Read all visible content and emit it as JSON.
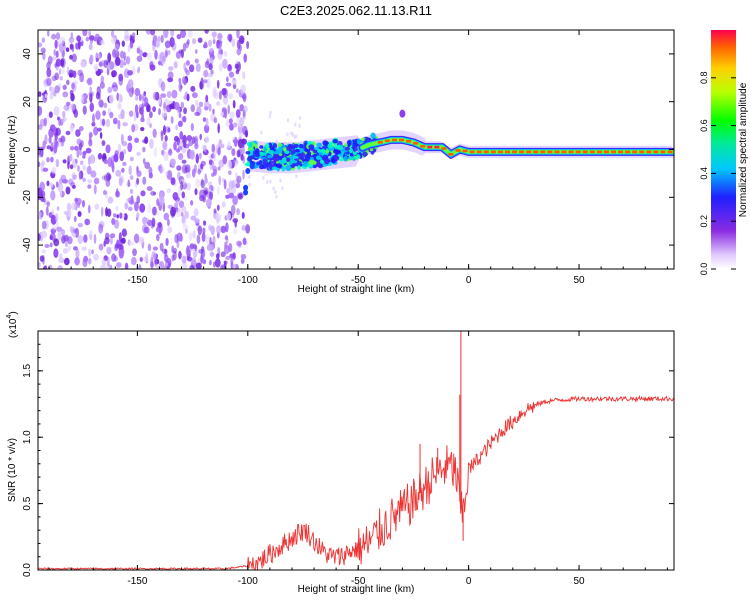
{
  "title": "C2E3.2025.062.11.13.R11",
  "colors": {
    "snr_line": "#ee3333",
    "axis": "#000000",
    "background": "#ffffff"
  },
  "chart_data": [
    {
      "type": "heatmap",
      "name": "spectrogram",
      "title": "C2E3.2025.062.11.13.R11",
      "xlabel": "Height of straight line (km)",
      "ylabel": "Frequency (Hz)",
      "xlim": [
        -195,
        93
      ],
      "ylim": [
        -50,
        50
      ],
      "xticks": [
        -150,
        -100,
        -50,
        0,
        50
      ],
      "yticks": [
        -40,
        -20,
        0,
        20,
        40
      ],
      "noise_region_x": [
        -195,
        -100
      ],
      "carrier_path": [
        {
          "x": -100,
          "y": -2
        },
        {
          "x": -90,
          "y": -3
        },
        {
          "x": -80,
          "y": -3
        },
        {
          "x": -70,
          "y": -2
        },
        {
          "x": -60,
          "y": -1
        },
        {
          "x": -50,
          "y": 0
        },
        {
          "x": -45,
          "y": 2
        },
        {
          "x": -40,
          "y": 3
        },
        {
          "x": -35,
          "y": 4
        },
        {
          "x": -30,
          "y": 4
        },
        {
          "x": -25,
          "y": 3
        },
        {
          "x": -20,
          "y": 1
        },
        {
          "x": -12,
          "y": 1
        },
        {
          "x": -8,
          "y": -2
        },
        {
          "x": -4,
          "y": 0
        },
        {
          "x": 0,
          "y": -1
        },
        {
          "x": 8,
          "y": -1
        },
        {
          "x": 20,
          "y": -1
        },
        {
          "x": 40,
          "y": -1
        },
        {
          "x": 60,
          "y": -1
        },
        {
          "x": 80,
          "y": -1
        },
        {
          "x": 93,
          "y": -1
        }
      ],
      "colorbar": {
        "label": "Normalized spectral amplitude",
        "range": [
          0.0,
          1.0
        ],
        "ticks": [
          "0.0",
          "0.2",
          "0.4",
          "0.6",
          "0.8"
        ]
      }
    },
    {
      "type": "line",
      "name": "snr",
      "xlabel": "Height of straight line (km)",
      "ylabel": "SNR (10 * v/v)",
      "ylabel_scale": "(x10",
      "ylabel_scale_exp": "4",
      "ylabel_scale_close": ")",
      "xlim": [
        -195,
        93
      ],
      "ylim": [
        0,
        1.8
      ],
      "xticks": [
        -150,
        -100,
        -50,
        0,
        50
      ],
      "yticks": [
        "0.0",
        "0.5",
        "1.0",
        "1.5"
      ],
      "series": [
        {
          "name": "SNR",
          "color": "#ee3333",
          "points": [
            [
              -195,
              0.01
            ],
            [
              -150,
              0.01
            ],
            [
              -110,
              0.01
            ],
            [
              -100,
              0.03
            ],
            [
              -95,
              0.06
            ],
            [
              -90,
              0.12
            ],
            [
              -85,
              0.18
            ],
            [
              -80,
              0.24
            ],
            [
              -77,
              0.28
            ],
            [
              -74,
              0.3
            ],
            [
              -70,
              0.22
            ],
            [
              -66,
              0.14
            ],
            [
              -62,
              0.1
            ],
            [
              -58,
              0.1
            ],
            [
              -54,
              0.14
            ],
            [
              -50,
              0.16
            ],
            [
              -45,
              0.2
            ],
            [
              -40,
              0.3
            ],
            [
              -35,
              0.38
            ],
            [
              -30,
              0.45
            ],
            [
              -25,
              0.52
            ],
            [
              -20,
              0.62
            ],
            [
              -15,
              0.72
            ],
            [
              -10,
              0.78
            ],
            [
              -6,
              0.75
            ],
            [
              -3,
              0.4
            ],
            [
              0,
              0.75
            ],
            [
              5,
              0.85
            ],
            [
              10,
              0.95
            ],
            [
              15,
              1.05
            ],
            [
              20,
              1.12
            ],
            [
              25,
              1.2
            ],
            [
              30,
              1.24
            ],
            [
              35,
              1.27
            ],
            [
              40,
              1.28
            ],
            [
              50,
              1.29
            ],
            [
              60,
              1.29
            ],
            [
              70,
              1.29
            ],
            [
              80,
              1.29
            ],
            [
              93,
              1.29
            ]
          ],
          "spikes": [
            {
              "x": -3.5,
              "y": 1.8
            },
            {
              "x": -4.0,
              "y": 1.32
            },
            {
              "x": -22,
              "y": 0.95
            },
            {
              "x": -14,
              "y": 0.92
            },
            {
              "x": -2.5,
              "y": 0.22
            }
          ]
        }
      ]
    }
  ]
}
